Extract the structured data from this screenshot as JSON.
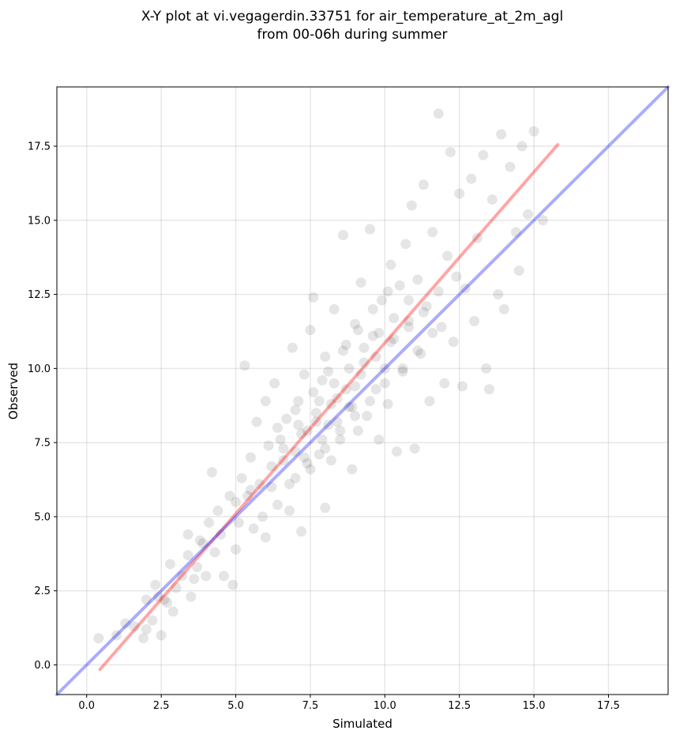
{
  "chart_data": {
    "type": "scatter",
    "title_line1": "X-Y plot at vi.vegagerdin.33751 for air_temperature_at_2m_agl",
    "title_line2": "from 00-06h during summer",
    "xlabel": "Simulated",
    "ylabel": "Observed",
    "xlim": [
      -1.0,
      19.5
    ],
    "ylim": [
      -1.0,
      19.5
    ],
    "xticks": [
      0.0,
      2.5,
      5.0,
      7.5,
      10.0,
      12.5,
      15.0,
      17.5
    ],
    "yticks": [
      0.0,
      2.5,
      5.0,
      7.5,
      10.0,
      12.5,
      15.0,
      17.5
    ],
    "xtick_labels": [
      "0.0",
      "2.5",
      "5.0",
      "7.5",
      "10.0",
      "12.5",
      "15.0",
      "17.5"
    ],
    "ytick_labels": [
      "0.0",
      "2.5",
      "5.0",
      "7.5",
      "10.0",
      "12.5",
      "15.0",
      "17.5"
    ],
    "grid": true,
    "point_color": "#000000",
    "point_alpha": 0.1,
    "points": [
      [
        0.4,
        0.9
      ],
      [
        1.0,
        1.0
      ],
      [
        1.3,
        1.4
      ],
      [
        1.6,
        1.3
      ],
      [
        1.9,
        0.9
      ],
      [
        2.0,
        1.2
      ],
      [
        2.0,
        2.2
      ],
      [
        2.2,
        1.5
      ],
      [
        2.3,
        2.7
      ],
      [
        2.4,
        2.3
      ],
      [
        2.5,
        1.0
      ],
      [
        2.6,
        2.2
      ],
      [
        2.7,
        2.1
      ],
      [
        2.8,
        3.4
      ],
      [
        2.9,
        1.8
      ],
      [
        3.2,
        3.0
      ],
      [
        3.4,
        3.7
      ],
      [
        3.4,
        4.4
      ],
      [
        3.5,
        2.3
      ],
      [
        3.6,
        2.9
      ],
      [
        3.7,
        3.3
      ],
      [
        3.9,
        4.1
      ],
      [
        4.0,
        3.0
      ],
      [
        4.1,
        4.8
      ],
      [
        4.2,
        6.5
      ],
      [
        4.3,
        3.8
      ],
      [
        4.5,
        4.4
      ],
      [
        4.6,
        3.0
      ],
      [
        4.8,
        5.7
      ],
      [
        4.9,
        2.7
      ],
      [
        5.0,
        3.9
      ],
      [
        5.1,
        4.8
      ],
      [
        5.2,
        6.3
      ],
      [
        5.3,
        10.1
      ],
      [
        5.4,
        5.7
      ],
      [
        5.5,
        7.0
      ],
      [
        5.6,
        4.6
      ],
      [
        5.7,
        8.2
      ],
      [
        5.8,
        6.1
      ],
      [
        5.9,
        5.0
      ],
      [
        6.0,
        8.9
      ],
      [
        6.0,
        4.3
      ],
      [
        6.1,
        7.4
      ],
      [
        6.2,
        6.0
      ],
      [
        6.3,
        9.5
      ],
      [
        6.4,
        5.4
      ],
      [
        6.5,
        7.6
      ],
      [
        6.6,
        6.9
      ],
      [
        6.7,
        8.3
      ],
      [
        6.8,
        5.2
      ],
      [
        6.9,
        10.7
      ],
      [
        7.0,
        7.2
      ],
      [
        7.0,
        6.3
      ],
      [
        7.1,
        8.9
      ],
      [
        7.2,
        4.5
      ],
      [
        7.3,
        9.8
      ],
      [
        7.4,
        7.9
      ],
      [
        7.5,
        6.6
      ],
      [
        7.5,
        11.3
      ],
      [
        7.6,
        12.4
      ],
      [
        7.7,
        8.5
      ],
      [
        7.8,
        7.1
      ],
      [
        7.9,
        9.6
      ],
      [
        8.0,
        5.3
      ],
      [
        8.0,
        10.4
      ],
      [
        8.1,
        8.1
      ],
      [
        8.2,
        6.9
      ],
      [
        8.3,
        12.0
      ],
      [
        8.4,
        9.0
      ],
      [
        8.5,
        7.6
      ],
      [
        8.6,
        14.5
      ],
      [
        8.7,
        10.8
      ],
      [
        8.8,
        8.7
      ],
      [
        8.9,
        6.6
      ],
      [
        9.0,
        11.5
      ],
      [
        9.0,
        9.4
      ],
      [
        9.1,
        7.9
      ],
      [
        9.2,
        12.9
      ],
      [
        9.3,
        10.2
      ],
      [
        9.4,
        8.4
      ],
      [
        9.5,
        14.7
      ],
      [
        9.6,
        11.1
      ],
      [
        9.7,
        9.3
      ],
      [
        9.8,
        7.6
      ],
      [
        9.9,
        12.3
      ],
      [
        10.0,
        10.0
      ],
      [
        10.1,
        8.8
      ],
      [
        10.2,
        13.5
      ],
      [
        10.3,
        11.0
      ],
      [
        10.4,
        7.2
      ],
      [
        10.5,
        12.8
      ],
      [
        10.6,
        9.9
      ],
      [
        10.7,
        14.2
      ],
      [
        10.8,
        11.6
      ],
      [
        10.9,
        15.5
      ],
      [
        11.0,
        7.3
      ],
      [
        11.1,
        13.0
      ],
      [
        11.2,
        10.5
      ],
      [
        11.3,
        16.2
      ],
      [
        11.4,
        12.1
      ],
      [
        11.5,
        8.9
      ],
      [
        11.6,
        14.6
      ],
      [
        11.8,
        18.6
      ],
      [
        11.9,
        11.4
      ],
      [
        12.0,
        9.5
      ],
      [
        12.1,
        13.8
      ],
      [
        12.2,
        17.3
      ],
      [
        12.3,
        10.9
      ],
      [
        12.5,
        15.9
      ],
      [
        12.6,
        9.4
      ],
      [
        12.7,
        12.7
      ],
      [
        12.9,
        16.4
      ],
      [
        13.0,
        11.6
      ],
      [
        13.1,
        14.4
      ],
      [
        13.3,
        17.2
      ],
      [
        13.4,
        10.0
      ],
      [
        13.5,
        9.3
      ],
      [
        13.6,
        15.7
      ],
      [
        13.8,
        12.5
      ],
      [
        13.9,
        17.9
      ],
      [
        14.0,
        12.0
      ],
      [
        14.2,
        16.8
      ],
      [
        14.4,
        14.6
      ],
      [
        14.5,
        13.3
      ],
      [
        14.6,
        17.5
      ],
      [
        14.8,
        15.2
      ],
      [
        15.0,
        18.0
      ],
      [
        15.3,
        15.0
      ],
      [
        3.0,
        2.6
      ],
      [
        3.8,
        4.2
      ],
      [
        4.4,
        5.2
      ],
      [
        5.0,
        5.5
      ],
      [
        5.5,
        5.9
      ],
      [
        6.2,
        6.7
      ],
      [
        6.6,
        7.3
      ],
      [
        7.2,
        7.8
      ],
      [
        7.7,
        8.2
      ],
      [
        8.2,
        8.8
      ],
      [
        8.7,
        9.3
      ],
      [
        9.2,
        9.8
      ],
      [
        9.7,
        10.4
      ],
      [
        10.2,
        10.9
      ],
      [
        10.8,
        11.4
      ],
      [
        11.3,
        11.9
      ],
      [
        11.8,
        12.6
      ],
      [
        12.4,
        13.1
      ],
      [
        6.4,
        8.0
      ],
      [
        7.0,
        8.6
      ],
      [
        7.6,
        9.2
      ],
      [
        8.1,
        9.9
      ],
      [
        8.6,
        10.6
      ],
      [
        9.1,
        11.3
      ],
      [
        9.6,
        12.0
      ],
      [
        10.1,
        12.6
      ],
      [
        6.8,
        6.1
      ],
      [
        7.4,
        6.8
      ],
      [
        8.0,
        7.3
      ],
      [
        8.5,
        7.9
      ],
      [
        9.0,
        8.4
      ],
      [
        9.5,
        8.9
      ],
      [
        10.0,
        9.5
      ],
      [
        10.6,
        10.0
      ],
      [
        11.1,
        10.6
      ],
      [
        11.6,
        11.2
      ],
      [
        7.3,
        7.0
      ],
      [
        7.9,
        7.6
      ],
      [
        8.4,
        8.2
      ],
      [
        8.9,
        8.7
      ],
      [
        7.1,
        8.1
      ],
      [
        7.8,
        8.9
      ],
      [
        8.3,
        9.5
      ],
      [
        8.8,
        10.0
      ],
      [
        9.3,
        10.7
      ],
      [
        9.8,
        11.2
      ],
      [
        10.3,
        11.7
      ],
      [
        10.8,
        12.3
      ]
    ],
    "series": [
      {
        "name": "",
        "color": "#ff0000",
        "alpha": 0.35,
        "x": [
          0.45,
          15.8
        ],
        "y": [
          -0.15,
          17.55
        ]
      },
      {
        "name": "",
        "color": "#0000ff",
        "alpha": 0.33,
        "x": [
          -1.0,
          19.5
        ],
        "y": [
          -1.0,
          19.5
        ]
      }
    ]
  }
}
